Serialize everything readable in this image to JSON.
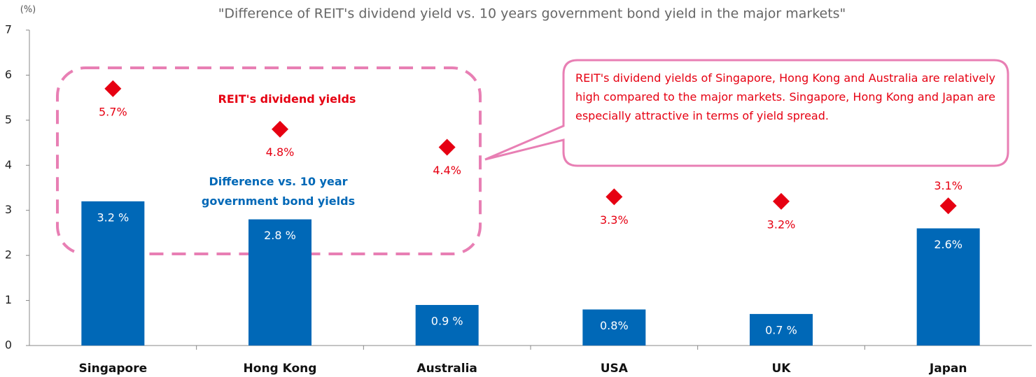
{
  "chart_data": {
    "type": "bar",
    "title": "\"Difference of REIT's dividend yield vs. 10 years government bond yield in the major markets\"",
    "y_axis_label": "(%)",
    "categories": [
      "Singapore",
      "Hong Kong",
      "Australia",
      "USA",
      "UK",
      "Japan"
    ],
    "series": [
      {
        "name": "Difference vs. 10 year government bond yields",
        "kind": "bar",
        "color": "#0068b7",
        "values": [
          3.2,
          2.8,
          0.9,
          0.8,
          0.7,
          2.6
        ],
        "value_labels": [
          "3.2 %",
          "2.8 %",
          "0.9 %",
          "0.8%",
          "0.7 %",
          "2.6%"
        ]
      },
      {
        "name": "REIT's dividend yields",
        "kind": "diamond",
        "color": "#e60012",
        "values": [
          5.7,
          4.8,
          4.4,
          3.3,
          3.2,
          3.1
        ],
        "value_labels": [
          "5.7%",
          "4.8%",
          "4.4%",
          "3.3%",
          "3.2%",
          "3.1%"
        ]
      }
    ],
    "ylim": [
      0,
      7
    ],
    "yticks": [
      0,
      1,
      2,
      3,
      4,
      5,
      6,
      7
    ],
    "grid": false,
    "annotation": "REIT's dividend yields of Singapore, Hong Kong and Australia are relatively high compared to the major markets. Singapore, Hong Kong and Japan are especially attractive in terms of yield spread."
  }
}
